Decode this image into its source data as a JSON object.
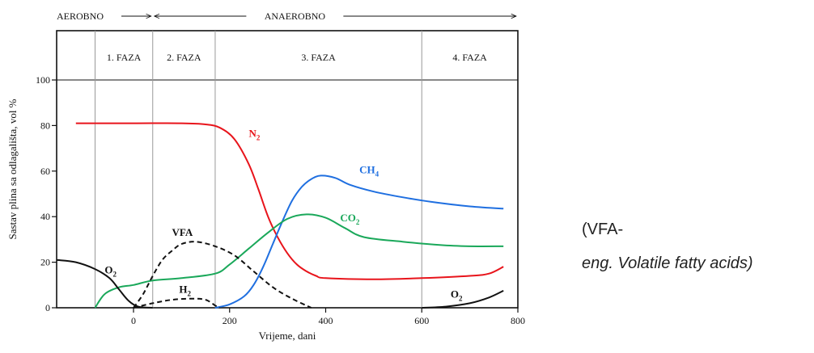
{
  "chart_data": {
    "type": "line",
    "xlabel": "Vrijeme, dani",
    "ylabel": "Sastav plina sa odlagališta, vol %",
    "xlim": [
      -160,
      800
    ],
    "ylim": [
      0,
      100
    ],
    "xticks": [
      0,
      200,
      400,
      600,
      800
    ],
    "yticks": [
      0,
      20,
      40,
      60,
      80,
      100
    ],
    "header": {
      "aerobno": "AEROBNO",
      "anaerobno": "ANAEROBNO",
      "aerobno_range": [
        -160,
        40
      ],
      "anaerobno_range": [
        40,
        800
      ]
    },
    "phases": [
      {
        "label": "1. FAZA",
        "x_start": -80,
        "x_end": 40
      },
      {
        "label": "2. FAZA",
        "x_start": 40,
        "x_end": 170
      },
      {
        "label": "3. FAZA",
        "x_start": 170,
        "x_end": 600
      },
      {
        "label": "4. FAZA",
        "x_start": 600,
        "x_end": 800
      }
    ],
    "series": [
      {
        "name": "N",
        "sub": "2",
        "color": "#e8141b",
        "style": "solid",
        "label_pos": [
          240,
          75
        ],
        "points": [
          [
            -120,
            81
          ],
          [
            0,
            81
          ],
          [
            100,
            81
          ],
          [
            150,
            80.5
          ],
          [
            180,
            79
          ],
          [
            210,
            74
          ],
          [
            240,
            63
          ],
          [
            260,
            52
          ],
          [
            280,
            40
          ],
          [
            300,
            31
          ],
          [
            320,
            24
          ],
          [
            340,
            19
          ],
          [
            360,
            16
          ],
          [
            380,
            14
          ],
          [
            400,
            13
          ],
          [
            500,
            12.5
          ],
          [
            600,
            13
          ],
          [
            700,
            14
          ],
          [
            740,
            15
          ],
          [
            770,
            18
          ]
        ]
      },
      {
        "name": "CH",
        "sub": "4",
        "color": "#1f6fe0",
        "style": "solid",
        "label_pos": [
          470,
          59
        ],
        "points": [
          [
            170,
            0
          ],
          [
            200,
            1.5
          ],
          [
            230,
            5
          ],
          [
            250,
            10
          ],
          [
            270,
            18
          ],
          [
            290,
            28
          ],
          [
            310,
            38
          ],
          [
            330,
            47
          ],
          [
            350,
            53
          ],
          [
            370,
            56.5
          ],
          [
            390,
            58
          ],
          [
            420,
            57
          ],
          [
            450,
            54
          ],
          [
            500,
            51
          ],
          [
            560,
            48.5
          ],
          [
            620,
            46.5
          ],
          [
            700,
            44.5
          ],
          [
            770,
            43.5
          ]
        ]
      },
      {
        "name": "CO",
        "sub": "2",
        "color": "#1aa85a",
        "style": "solid",
        "label_pos": [
          430,
          38
        ],
        "points": [
          [
            -80,
            0
          ],
          [
            -60,
            6
          ],
          [
            -30,
            9
          ],
          [
            0,
            10
          ],
          [
            40,
            12
          ],
          [
            100,
            13
          ],
          [
            170,
            15
          ],
          [
            200,
            19
          ],
          [
            240,
            26
          ],
          [
            280,
            33
          ],
          [
            320,
            39
          ],
          [
            360,
            41
          ],
          [
            400,
            39.5
          ],
          [
            440,
            35
          ],
          [
            480,
            31
          ],
          [
            560,
            29
          ],
          [
            640,
            27.5
          ],
          [
            700,
            27
          ],
          [
            770,
            27
          ]
        ]
      },
      {
        "name": "O",
        "sub": "2",
        "color": "#111111",
        "style": "solid",
        "label_pos": [
          -60,
          15
        ],
        "points": [
          [
            -160,
            21
          ],
          [
            -120,
            20
          ],
          [
            -80,
            17
          ],
          [
            -50,
            13
          ],
          [
            -30,
            8
          ],
          [
            -10,
            3
          ],
          [
            10,
            0.5
          ],
          [
            40,
            0
          ]
        ]
      },
      {
        "name": "O",
        "sub": "2",
        "color": "#111111",
        "style": "solid",
        "label_pos": [
          660,
          4.5
        ],
        "points": [
          [
            600,
            0
          ],
          [
            650,
            0.5
          ],
          [
            700,
            2
          ],
          [
            740,
            4.5
          ],
          [
            770,
            7.5
          ]
        ]
      },
      {
        "name": "VFA",
        "sub": "",
        "color": "#111111",
        "style": "dashed",
        "label_pos": [
          80,
          31.5
        ],
        "points": [
          [
            0,
            0
          ],
          [
            20,
            6
          ],
          [
            40,
            14
          ],
          [
            60,
            21
          ],
          [
            80,
            25
          ],
          [
            100,
            28
          ],
          [
            130,
            29
          ],
          [
            170,
            27
          ],
          [
            210,
            23
          ],
          [
            250,
            16
          ],
          [
            290,
            9
          ],
          [
            330,
            4
          ],
          [
            370,
            0
          ]
        ]
      },
      {
        "name": "H",
        "sub": "2",
        "color": "#111111",
        "style": "dashed",
        "label_pos": [
          95,
          6.5
        ],
        "points": [
          [
            0,
            0
          ],
          [
            40,
            2
          ],
          [
            80,
            3.5
          ],
          [
            120,
            4
          ],
          [
            150,
            3.5
          ],
          [
            170,
            1
          ],
          [
            180,
            0
          ]
        ]
      }
    ]
  },
  "notes": {
    "line1": "(VFA-",
    "line2": "eng. Volatile fatty acids)"
  }
}
